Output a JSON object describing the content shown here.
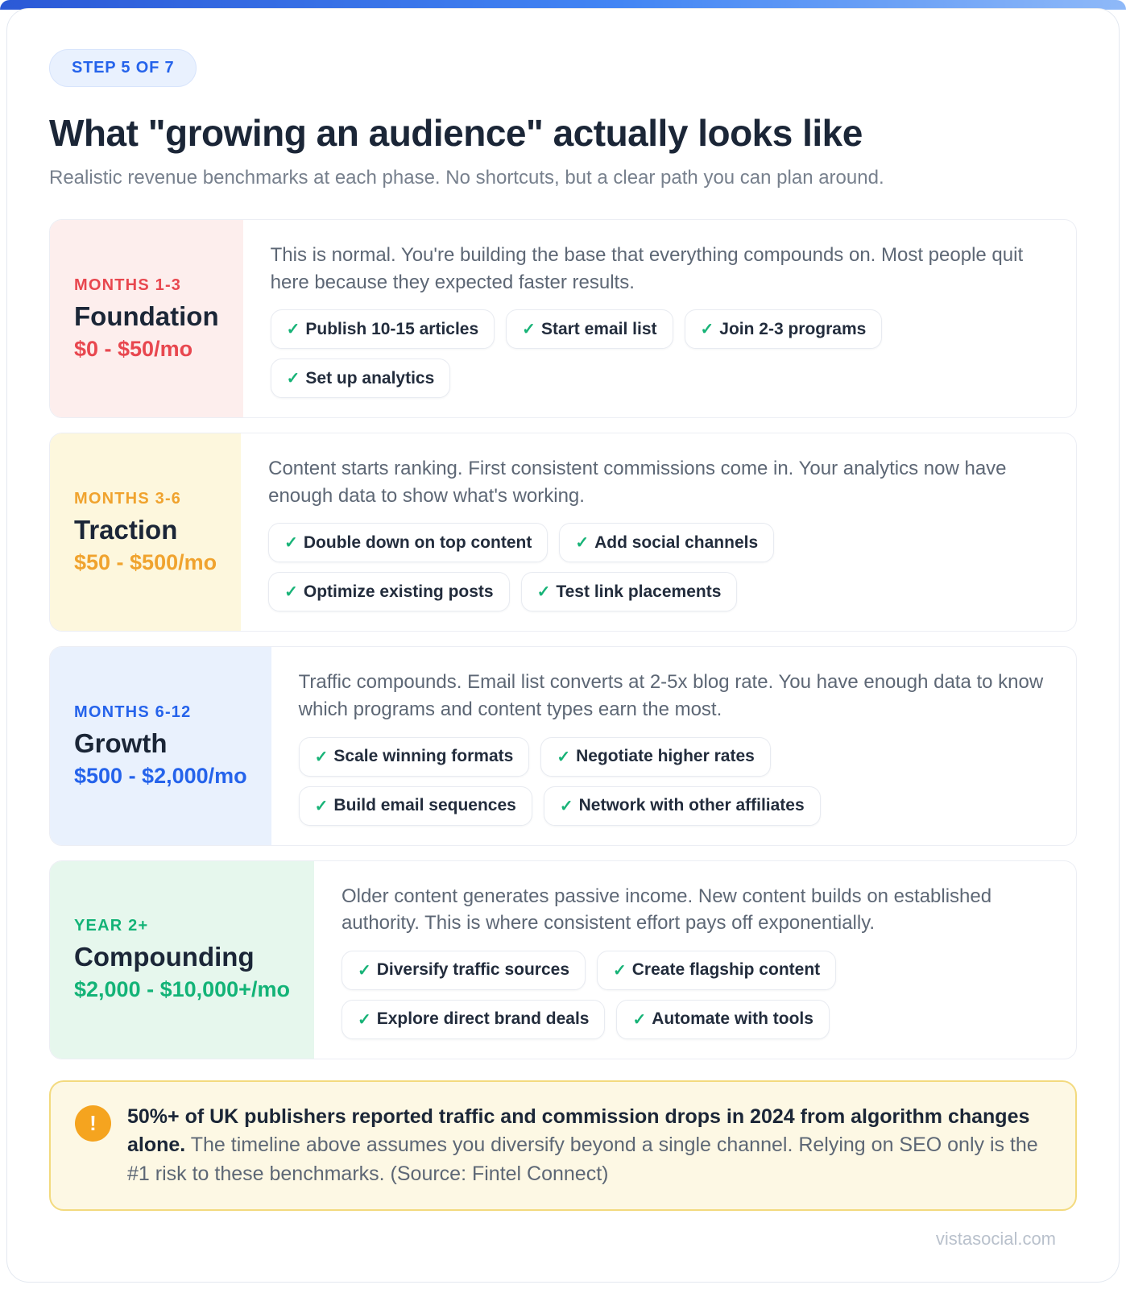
{
  "page": {
    "badge": "STEP 5 OF 7",
    "title": "What \"growing an audience\" actually looks like",
    "subtitle": "Realistic revenue benchmarks at each phase. No shortcuts, but a clear path you can plan around.",
    "footer": "vistasocial.com"
  },
  "ui": {
    "check_icon": "✓",
    "warning_icon": "!"
  },
  "colors": {
    "top_bar_gradient_start": "#2b59d6",
    "top_bar_gradient_end": "#8fb9f8",
    "badge_text": "#2563eb",
    "badge_bg": "#e9f1fe",
    "heading_text": "#1b2637",
    "body_text": "#5d6775",
    "check": "#17b377",
    "warning_bg": "#fdf8e4",
    "warning_border": "#f3da7e",
    "warning_icon_bg": "#f5a41f"
  },
  "phases": [
    {
      "period": "MONTHS 1-3",
      "name": "Foundation",
      "revenue": "$0 - $50/mo",
      "description": "This is normal. You're building the base that everything compounds on. Most people quit here because they expected faster results.",
      "tasks": [
        "Publish 10-15 articles",
        "Start email list",
        "Join 2-3 programs",
        "Set up analytics"
      ],
      "panel_bg": "#fdeeed",
      "accent": "#e8474f"
    },
    {
      "period": "MONTHS 3-6",
      "name": "Traction",
      "revenue": "$50 - $500/mo",
      "description": "Content starts ranking. First consistent commissions come in. Your analytics now have enough data to show what's working.",
      "tasks": [
        "Double down on top content",
        "Add social channels",
        "Optimize existing posts",
        "Test link placements"
      ],
      "panel_bg": "#fdf7dd",
      "accent": "#f0a32e"
    },
    {
      "period": "MONTHS 6-12",
      "name": "Growth",
      "revenue": "$500 - $2,000/mo",
      "description": "Traffic compounds. Email list converts at 2-5x blog rate. You have enough data to know which programs and content types earn the most.",
      "tasks": [
        "Scale winning formats",
        "Negotiate higher rates",
        "Build email sequences",
        "Network with other affiliates"
      ],
      "panel_bg": "#e9f1fd",
      "accent": "#2563eb"
    },
    {
      "period": "YEAR 2+",
      "name": "Compounding",
      "revenue": "$2,000 - $10,000+/mo",
      "description": "Older content generates passive income. New content builds on established authority. This is where consistent effort pays off exponentially.",
      "tasks": [
        "Diversify traffic sources",
        "Create flagship content",
        "Explore direct brand deals",
        "Automate with tools"
      ],
      "panel_bg": "#e6f7ed",
      "accent": "#13b377"
    }
  ],
  "warning": {
    "bold_text": "50%+ of UK publishers reported traffic and commission drops in 2024 from algorithm changes alone.",
    "body_text": "The timeline above assumes you diversify beyond a single channel. Relying on SEO only is the #1 risk to these benchmarks. (Source: Fintel Connect)"
  }
}
